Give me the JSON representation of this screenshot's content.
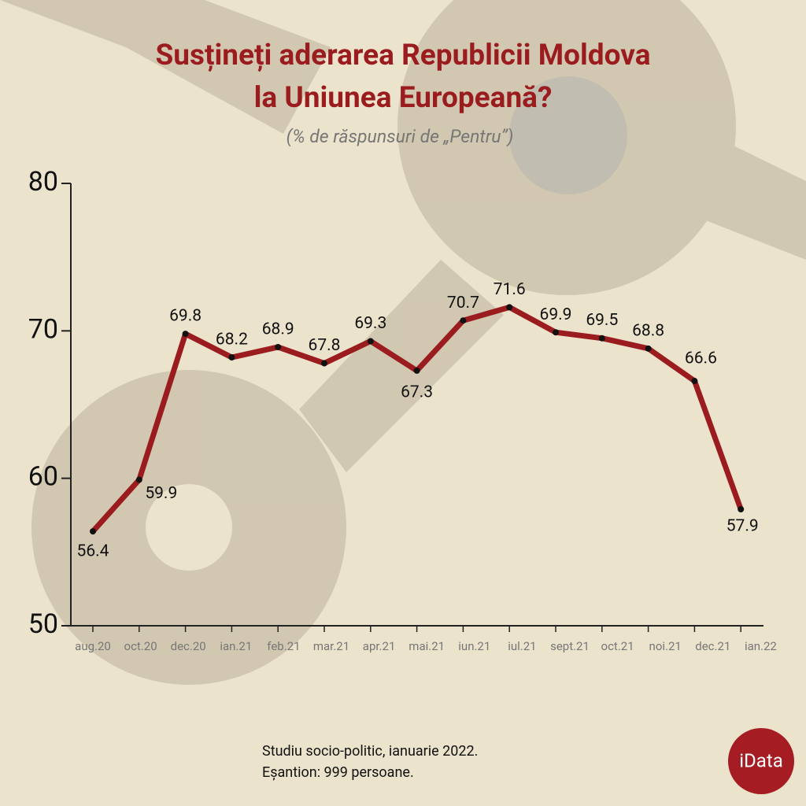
{
  "chart_data": {
    "type": "line",
    "title": [
      "Susțineți aderarea Republicii Moldova",
      "la Uniunea Europeană?"
    ],
    "subtitle": "(% de răspunsuri de „Pentru”)",
    "categories": [
      "aug.20",
      "oct.20",
      "dec.20",
      "ian.21",
      "feb.21",
      "mar.21",
      "apr.21",
      "mai.21",
      "iun.21",
      "iul.21",
      "sept.21",
      "oct.21",
      "noi.21",
      "dec.21",
      "ian.22"
    ],
    "series": [
      {
        "name": "Pentru",
        "color": "#9b1c1f",
        "values": [
          56.4,
          59.9,
          69.8,
          68.2,
          68.9,
          67.8,
          69.3,
          67.3,
          70.7,
          71.6,
          69.9,
          69.5,
          68.8,
          66.6,
          57.9
        ]
      }
    ],
    "ylim": [
      50,
      80
    ],
    "yticks": [
      50,
      60,
      70,
      80
    ],
    "notes": [
      "Studiu socio-politic, ianuarie 2022.",
      "Eșantion: 999 persoane."
    ],
    "logo": "iData"
  }
}
